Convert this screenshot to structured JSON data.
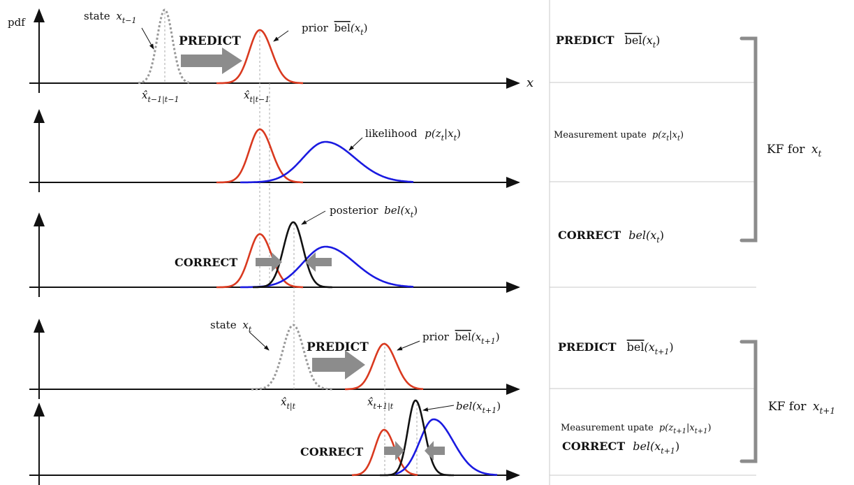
{
  "left_panel": {
    "y_axis_label": "pdf",
    "x_axis_label": "x",
    "row1": {
      "state_label": "state",
      "state_symbol": "x",
      "state_sub": "t−1",
      "predict_label": "PREDICT",
      "prior_label": "prior",
      "prior_func": "bel",
      "prior_arg": "(x",
      "prior_arg_sub": "t",
      "prior_arg_close": ")",
      "xhat_left_sub": "t−1|t−1",
      "xhat_right_sub": "t|t−1"
    },
    "row2": {
      "likelihood_label": "likelihood",
      "likelihood_expr": "p(z",
      "likelihood_sub1": "t",
      "likelihood_mid": "|x",
      "likelihood_sub2": "t",
      "likelihood_close": ")"
    },
    "row3": {
      "correct_label": "CORRECT",
      "posterior_label": "posterior",
      "posterior_func": "bel(x",
      "posterior_sub": "t",
      "posterior_close": ")"
    },
    "row4": {
      "state_label": "state",
      "state_symbol": "x",
      "state_sub": "t",
      "predict_label": "PREDICT",
      "prior_label": "prior",
      "prior_func": "bel",
      "prior_arg": "(x",
      "prior_arg_sub": "t+1",
      "prior_arg_close": ")",
      "xhat_left_sub": "t|t",
      "xhat_right_sub": "t+1|t"
    },
    "row5": {
      "correct_label": "CORRECT",
      "bel_func": "bel(x",
      "bel_sub": "t+1",
      "bel_close": ")"
    }
  },
  "right_panel": {
    "r1": {
      "bold": "PREDICT",
      "func": "bel",
      "arg": "(x",
      "sub": "t",
      "close": ")"
    },
    "r2": {
      "text": "Measurement upate",
      "expr": "p(z",
      "sub1": "t",
      "mid": "|x",
      "sub2": "t",
      "close": ")"
    },
    "r3": {
      "bold": "CORRECT",
      "func": "bel(x",
      "sub": "t",
      "close": ")"
    },
    "r4": {
      "bold": "PREDICT",
      "func": "bel",
      "arg": "(x",
      "sub": "t+1",
      "close": ")"
    },
    "r5": {
      "text": "Measurement upate",
      "expr": "p(z",
      "sub1": "t+1",
      "mid": "|x",
      "sub2": "t+1",
      "close": ")"
    },
    "r6": {
      "bold": "CORRECT",
      "func": "bel(x",
      "sub": "t+1",
      "close": ")"
    },
    "kf1": {
      "text": "KF for",
      "sym": "x",
      "sub": "t"
    },
    "kf2": {
      "text": "KF for",
      "sym": "x",
      "sub": "t+1"
    }
  },
  "colors": {
    "prior": "#d9391f",
    "likelihood": "#1a1ae0",
    "posterior": "#111111",
    "state": "#999999",
    "arrow": "#8c8c8c",
    "divider": "#c8c8c8"
  }
}
